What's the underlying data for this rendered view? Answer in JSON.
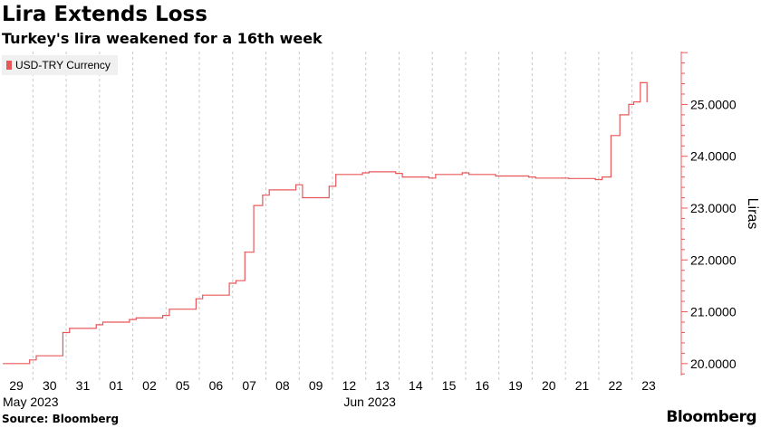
{
  "header": {
    "title": "Lira Extends Loss",
    "subtitle": "Turkey's lira weakened for a 16th week"
  },
  "footer": {
    "source": "Source: Bloomberg",
    "brand": "Bloomberg"
  },
  "colors": {
    "series": "#e8585b",
    "gridline": "#c8c8c8",
    "axis": "#e8585b"
  },
  "chart_data": {
    "type": "line",
    "title": "Lira Extends Loss",
    "subtitle": "Turkey's lira weakened for a 16th week",
    "ylabel": "Liras",
    "xlabel": "",
    "ylim": [
      19.77,
      26.02
    ],
    "yticks": [
      "20.0000",
      "21.0000",
      "22.0000",
      "23.0000",
      "24.0000",
      "25.0000"
    ],
    "ytick_values": [
      20,
      21,
      22,
      23,
      24,
      25
    ],
    "xticks": [
      "29",
      "30",
      "31",
      "01",
      "02",
      "05",
      "06",
      "07",
      "08",
      "09",
      "12",
      "13",
      "14",
      "15",
      "16",
      "19",
      "20",
      "21",
      "22",
      "23"
    ],
    "x_month_labels": [
      "May 2023",
      "Jun 2023"
    ],
    "grid": "vertical dashed",
    "legend": {
      "position": "top-left",
      "entries": [
        "USD-TRY Currency"
      ]
    },
    "series": [
      {
        "name": "USD-TRY Currency",
        "x": [
          "May 29",
          "May 29",
          "May 30",
          "May 30",
          "May 31",
          "May 31",
          "Jun 01",
          "Jun 01",
          "Jun 02",
          "Jun 02",
          "Jun 05",
          "Jun 05",
          "Jun 06",
          "Jun 06",
          "Jun 07",
          "Jun 07",
          "Jun 07",
          "Jun 07",
          "Jun 08",
          "Jun 08",
          "Jun 09",
          "Jun 09",
          "Jun 12",
          "Jun 12",
          "Jun 13",
          "Jun 13",
          "Jun 14",
          "Jun 14",
          "Jun 15",
          "Jun 15",
          "Jun 16",
          "Jun 16",
          "Jun 19",
          "Jun 19",
          "Jun 20",
          "Jun 20",
          "Jun 21",
          "Jun 21",
          "Jun 22",
          "Jun 22",
          "Jun 22",
          "Jun 22",
          "Jun 23",
          "Jun 23",
          "Jun 23"
        ],
        "values": [
          20.0,
          20.07,
          20.15,
          20.6,
          20.68,
          20.75,
          20.8,
          20.85,
          20.88,
          20.93,
          21.05,
          21.25,
          21.32,
          21.55,
          21.6,
          22.15,
          23.05,
          23.25,
          23.35,
          23.45,
          23.2,
          23.42,
          23.65,
          23.68,
          23.7,
          23.67,
          23.6,
          23.58,
          23.65,
          23.68,
          23.65,
          23.62,
          23.62,
          23.6,
          23.58,
          23.58,
          23.57,
          23.55,
          23.6,
          24.4,
          24.8,
          25.0,
          25.05,
          25.42,
          25.05
        ]
      }
    ]
  }
}
